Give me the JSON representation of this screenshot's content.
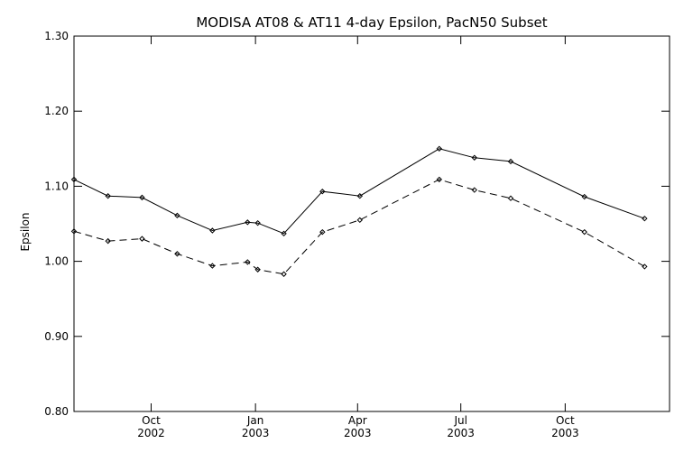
{
  "chart_data": {
    "type": "line",
    "title": "MODISA AT08 & AT11 4-day Epsilon, PacN50 Subset",
    "xlabel": "",
    "ylabel": "Epsilon",
    "ylim": [
      0.8,
      1.3
    ],
    "yticks": [
      "0.80",
      "0.90",
      "1.00",
      "1.10",
      "1.20",
      "1.30"
    ],
    "xlim": [
      "2002-07-25",
      "2004-01-01"
    ],
    "xticks": [
      {
        "date": "2002-10-01",
        "month": "Oct",
        "year": "2002"
      },
      {
        "date": "2003-01-01",
        "month": "Jan",
        "year": "2003"
      },
      {
        "date": "2003-04-01",
        "month": "Apr",
        "year": "2003"
      },
      {
        "date": "2003-07-01",
        "month": "Jul",
        "year": "2003"
      },
      {
        "date": "2003-10-01",
        "month": "Oct",
        "year": "2003"
      }
    ],
    "grid": false,
    "legend": "none",
    "series": [
      {
        "line_style": "solid",
        "color": "#000000",
        "points": [
          {
            "x": "2002-07-25",
            "y": 1.109
          },
          {
            "x": "2002-08-24",
            "y": 1.087
          },
          {
            "x": "2002-09-23",
            "y": 1.085
          },
          {
            "x": "2002-10-24",
            "y": 1.061
          },
          {
            "x": "2002-11-24",
            "y": 1.041
          },
          {
            "x": "2002-12-25",
            "y": 1.052
          },
          {
            "x": "2003-01-03",
            "y": 1.051
          },
          {
            "x": "2003-01-26",
            "y": 1.037
          },
          {
            "x": "2003-03-01",
            "y": 1.093
          },
          {
            "x": "2003-04-03",
            "y": 1.087
          },
          {
            "x": "2003-06-12",
            "y": 1.15
          },
          {
            "x": "2003-07-13",
            "y": 1.138
          },
          {
            "x": "2003-08-14",
            "y": 1.133
          },
          {
            "x": "2003-10-18",
            "y": 1.086
          },
          {
            "x": "2003-12-10",
            "y": 1.057
          }
        ]
      },
      {
        "line_style": "dashed",
        "color": "#000000",
        "points": [
          {
            "x": "2002-07-25",
            "y": 1.04
          },
          {
            "x": "2002-08-24",
            "y": 1.027
          },
          {
            "x": "2002-09-23",
            "y": 1.03
          },
          {
            "x": "2002-10-24",
            "y": 1.01
          },
          {
            "x": "2002-11-24",
            "y": 0.994
          },
          {
            "x": "2002-12-25",
            "y": 0.999
          },
          {
            "x": "2003-01-03",
            "y": 0.989
          },
          {
            "x": "2003-01-26",
            "y": 0.983
          },
          {
            "x": "2003-03-01",
            "y": 1.039
          },
          {
            "x": "2003-04-03",
            "y": 1.055
          },
          {
            "x": "2003-06-12",
            "y": 1.109
          },
          {
            "x": "2003-07-13",
            "y": 1.095
          },
          {
            "x": "2003-08-14",
            "y": 1.084
          },
          {
            "x": "2003-10-18",
            "y": 1.039
          },
          {
            "x": "2003-12-10",
            "y": 0.993
          }
        ]
      }
    ]
  }
}
